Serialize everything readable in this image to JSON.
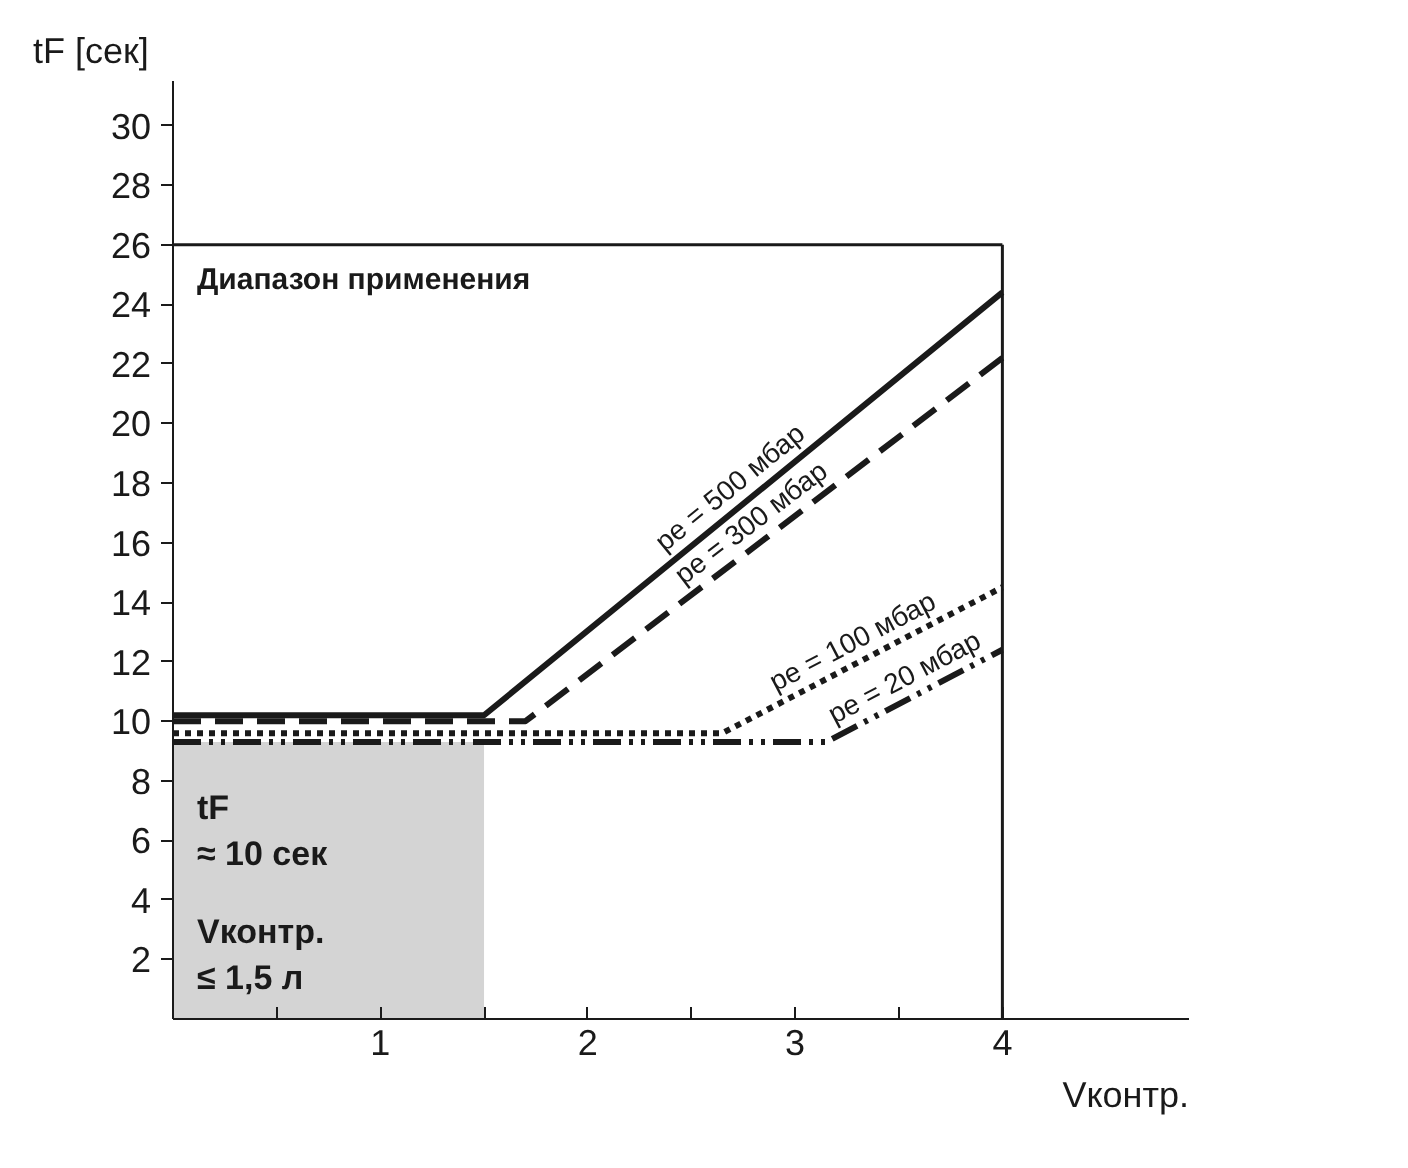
{
  "chart_data": {
    "type": "line",
    "xlabel": "Vконтр.",
    "ylabel": "tF [сек]",
    "xlim": [
      0,
      4.9
    ],
    "ylim": [
      0,
      31.5
    ],
    "xticks": [
      {
        "value": 0.5,
        "label": null
      },
      1,
      {
        "value": 1.5,
        "label": null
      },
      2,
      {
        "value": 2.5,
        "label": null
      },
      3,
      {
        "value": 3.5,
        "label": null
      },
      4
    ],
    "yticks": [
      2,
      4,
      6,
      8,
      10,
      12,
      14,
      16,
      18,
      20,
      22,
      24,
      26,
      28,
      30
    ],
    "grid": false,
    "series": [
      {
        "name": "pe = 500 мбар",
        "color": "#1a1a1a",
        "line_style": "solid",
        "x": [
          0,
          1.5,
          4
        ],
        "values": [
          10.2,
          10.2,
          24.4
        ]
      },
      {
        "name": "pe = 300 мбар",
        "color": "#1a1a1a",
        "line_style": "dashed",
        "x": [
          0,
          1.7,
          4
        ],
        "values": [
          10.0,
          10.0,
          22.2
        ]
      },
      {
        "name": "pe = 100 мбар",
        "color": "#1a1a1a",
        "line_style": "dotted",
        "x": [
          0,
          2.65,
          4
        ],
        "values": [
          9.6,
          9.6,
          14.5
        ]
      },
      {
        "name": "pe = 20 мбар",
        "color": "#1a1a1a",
        "line_style": "dashdot",
        "x": [
          0,
          3.15,
          4
        ],
        "values": [
          9.3,
          9.3,
          12.4
        ]
      }
    ],
    "ref_lines": [
      {
        "axis": "y",
        "value": 26,
        "label": "Диапазон применения",
        "color": "#1a1a1a"
      },
      {
        "axis": "x",
        "value": 4,
        "label": null,
        "color": "#1a1a1a"
      }
    ],
    "bands": [
      {
        "axis": "x",
        "from": 0,
        "to": 1.5,
        "label": null,
        "color": "#d4d4d4"
      }
    ],
    "annotations": [
      "tF\n≈ 10 сек",
      "Vконтр.\n≤ 1,5 л"
    ]
  }
}
